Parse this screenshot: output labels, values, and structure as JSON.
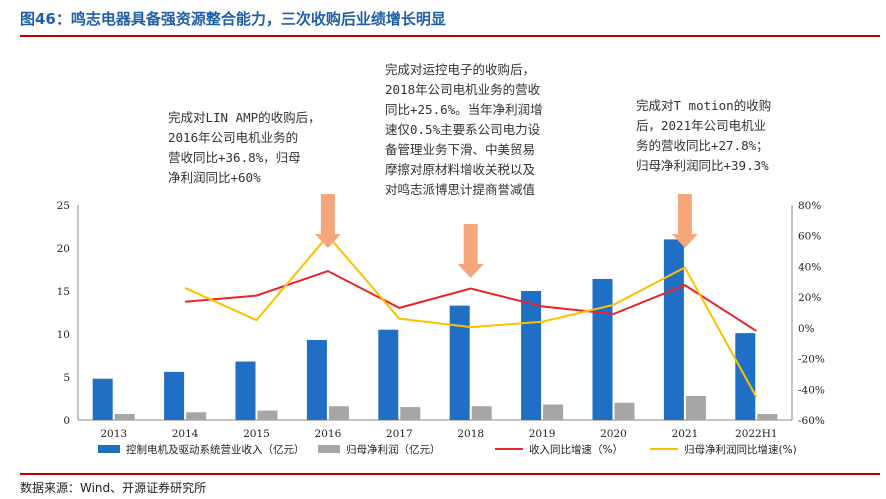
{
  "header": {
    "title": "图46：鸣志电器具备强资源整合能力，三次收购后业绩增长明显"
  },
  "footer": {
    "source": "数据来源：Wind、开源证券研究所"
  },
  "annotations": [
    {
      "lines": [
        "完成对LIN AMP的收购后，",
        "2016年公司电机业务的",
        "营收同比+36.8%，归母",
        "净利润同比+60%"
      ]
    },
    {
      "lines": [
        "完成对运控电子的收购后，",
        "2018年公司电机业务的营收",
        "同比+25.6%。当年净利润增",
        "速仅0.5%主要系公司电力设",
        "备管理业务下滑、中美贸易",
        "摩擦对原材料增收关税以及",
        "对鸣志派博思计提商誉减值"
      ]
    },
    {
      "lines": [
        "完成对T motion的收购",
        "后，2021年公司电机业",
        "务的营收同比+27.8%；",
        "归母净利润同比+39.3%"
      ]
    }
  ],
  "chart_data": {
    "type": "bar",
    "categories": [
      "2013",
      "2014",
      "2015",
      "2016",
      "2017",
      "2018",
      "2019",
      "2020",
      "2021",
      "2022H1"
    ],
    "series": [
      {
        "name": "控制电机及驱动系统营业收入（亿元）",
        "type": "bar",
        "axis": "left",
        "color": "#1f6fc5",
        "values": [
          4.8,
          5.6,
          6.8,
          9.3,
          10.5,
          13.3,
          15.0,
          16.4,
          21.0,
          10.1
        ]
      },
      {
        "name": "归母净利润（亿元）",
        "type": "bar",
        "axis": "left",
        "color": "#a6a6a6",
        "values": [
          0.7,
          0.9,
          1.1,
          1.6,
          1.5,
          1.6,
          1.8,
          2.0,
          2.8,
          0.7
        ]
      },
      {
        "name": "收入同比增速（%）",
        "type": "line",
        "axis": "right",
        "color": "#e8232a",
        "values": [
          null,
          17,
          21,
          37,
          13,
          25.6,
          14,
          9,
          27.8,
          -2
        ]
      },
      {
        "name": "归母净利润同比增速(%)",
        "type": "line",
        "axis": "right",
        "color": "#ffc000",
        "values": [
          null,
          26,
          5,
          60,
          6,
          0.5,
          4,
          15,
          39.3,
          -45
        ]
      }
    ],
    "left_axis": {
      "min": 0,
      "max": 25,
      "ticks": [
        "0",
        "5",
        "10",
        "15",
        "20",
        "25"
      ]
    },
    "right_axis": {
      "min": -60,
      "max": 80,
      "ticks": [
        "-60%",
        "-40%",
        "-20%",
        "0%",
        "20%",
        "40%",
        "60%",
        "80%"
      ]
    },
    "arrow_years": [
      "2016",
      "2018",
      "2021"
    ],
    "arrow_color": "#f4a77a"
  }
}
